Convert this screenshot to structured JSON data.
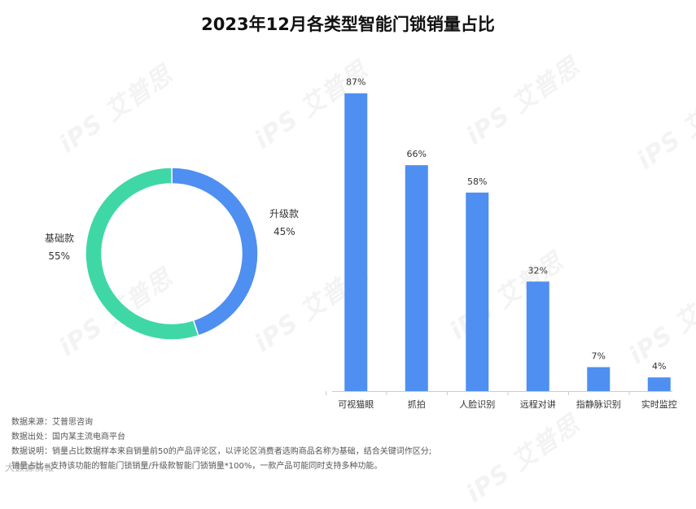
{
  "title": "2023年12月各类型智能门锁销量占比",
  "watermark_text": "iPS 艾普思",
  "colors": {
    "donut_upgrade": "#4e8ff1",
    "donut_basic": "#40d7a6",
    "bar": "#4e8ff1"
  },
  "chart_data": [
    {
      "type": "pie",
      "variant": "donut",
      "slices": [
        {
          "label": "升级款",
          "value": 45,
          "value_label": "45%"
        },
        {
          "label": "基础款",
          "value": 55,
          "value_label": "55%"
        }
      ]
    },
    {
      "type": "bar",
      "categories": [
        "可视猫眼",
        "抓拍",
        "人脸识别",
        "远程对讲",
        "指静脉识别",
        "实时监控"
      ],
      "values": [
        87,
        66,
        58,
        32,
        7,
        4
      ],
      "value_labels": [
        "87%",
        "66%",
        "58%",
        "32%",
        "7%",
        "4%"
      ],
      "ylim": [
        0,
        100
      ],
      "grid": false
    }
  ],
  "notes": [
    "数据来源：艾普思咨询",
    "数据出处：国内某主流电商平台",
    "数据说明：销量占比数据样本来自销量前50的产品评论区，以评论区消费者选购商品名称为基础，结合关键词作区分;",
    "销量占比=支持该功能的智能门锁销量/升级款智能门锁销量*100%，一款产品可能同时支持多种功能。"
  ],
  "logo_text": "大數據情報"
}
